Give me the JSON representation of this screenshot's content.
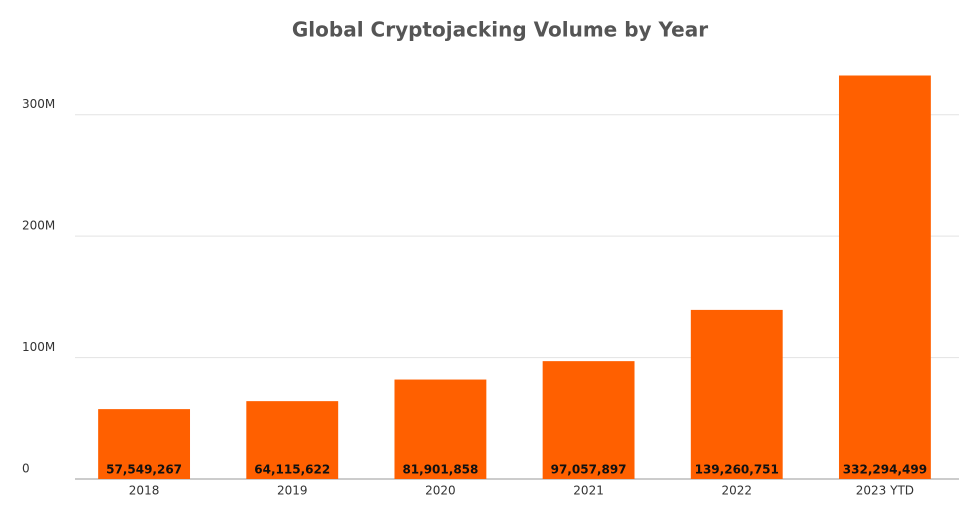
{
  "chart_data": {
    "type": "bar",
    "title": "Global Cryptojacking Volume by Year",
    "categories": [
      "2018",
      "2019",
      "2020",
      "2021",
      "2022",
      "2023 YTD"
    ],
    "values": [
      57549267,
      64115622,
      81901858,
      97057897,
      139260751,
      332294499
    ],
    "value_labels": [
      "57,549,267",
      "64,115,622",
      "81,901,858",
      "97,057,897",
      "139,260,751",
      "332,294,499"
    ],
    "color": "#ff6000",
    "ylim": [
      0,
      350000000
    ],
    "yticks": [
      0,
      {
        "value": 100000000,
        "label": "100M"
      },
      {
        "value": 200000000,
        "label": "200M"
      },
      {
        "value": 300000000,
        "label": "300M"
      }
    ],
    "grid": true
  }
}
